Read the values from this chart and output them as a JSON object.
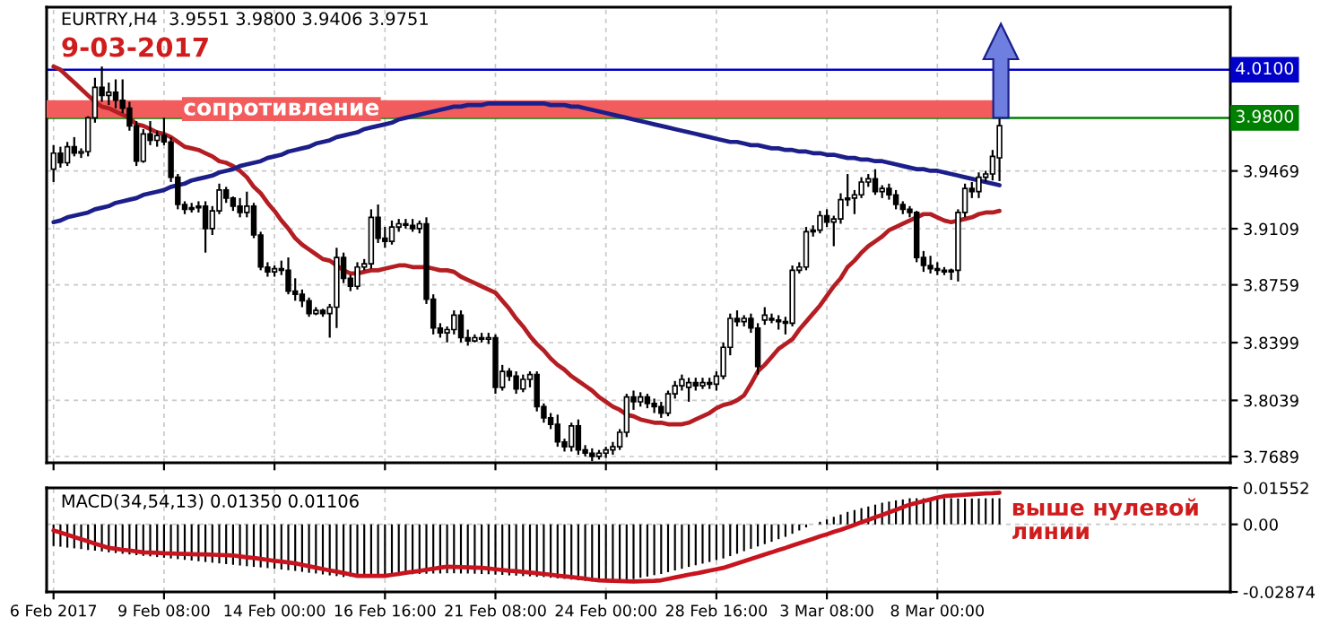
{
  "chart_data": [
    {
      "type": "candlestick",
      "title": "EURTRY,H4  3.9551 3.9800 3.9406 3.9751",
      "subtitle": "9-03-2017",
      "categories": [
        null,
        null,
        null,
        null,
        null,
        null,
        null,
        null,
        null,
        null,
        null,
        null,
        null,
        null,
        null,
        null,
        null,
        null,
        null,
        null,
        null,
        null,
        null,
        null,
        null,
        null,
        null,
        null,
        null,
        null,
        null,
        null,
        null,
        null,
        null,
        null,
        null,
        null,
        null,
        null,
        null,
        null,
        null,
        null,
        null,
        null,
        null,
        null,
        null,
        null,
        null,
        null,
        null,
        null,
        null,
        null,
        null,
        null,
        null,
        null,
        null,
        null,
        null,
        null,
        null,
        null,
        null,
        null,
        null,
        null,
        null,
        null,
        null,
        null,
        null,
        null,
        null,
        null,
        null,
        null,
        null,
        null,
        null,
        null,
        null,
        null,
        null,
        null,
        null,
        null,
        null,
        null,
        null,
        null,
        null,
        null,
        null,
        null,
        null,
        null,
        null,
        null,
        null,
        null,
        null,
        null,
        null,
        null,
        null,
        null,
        null,
        null,
        null,
        null,
        null,
        null,
        null,
        null,
        null,
        null,
        null,
        null,
        null,
        null,
        null,
        null,
        null,
        null,
        null,
        null,
        null,
        null,
        null,
        null,
        null,
        null,
        null,
        null
      ],
      "ohlc": [
        [
          3.948,
          3.963,
          3.94,
          3.958
        ],
        [
          3.958,
          3.962,
          3.949,
          3.952
        ],
        [
          3.952,
          3.965,
          3.95,
          3.962
        ],
        [
          3.962,
          3.968,
          3.956,
          3.958
        ],
        [
          3.958,
          3.961,
          3.955,
          3.959
        ],
        [
          3.959,
          3.981,
          3.956,
          3.98
        ],
        [
          3.98,
          4.005,
          3.977,
          3.999
        ],
        [
          3.999,
          4.012,
          3.99,
          3.994
        ],
        [
          3.994,
          4.002,
          3.988,
          3.996
        ],
        [
          3.996,
          4.004,
          3.986,
          3.991
        ],
        [
          3.991,
          4.004,
          3.983,
          3.986
        ],
        [
          3.986,
          3.99,
          3.972,
          3.975
        ],
        [
          3.975,
          3.978,
          3.95,
          3.953
        ],
        [
          3.953,
          3.973,
          3.952,
          3.97
        ],
        [
          3.97,
          3.978,
          3.963,
          3.966
        ],
        [
          3.966,
          3.972,
          3.962,
          3.969
        ],
        [
          3.969,
          3.98,
          3.963,
          3.965
        ],
        [
          3.965,
          3.968,
          3.94,
          3.943
        ],
        [
          3.943,
          3.945,
          3.923,
          3.926
        ],
        [
          3.926,
          3.928,
          3.92,
          3.923
        ],
        [
          3.923,
          3.927,
          3.921,
          3.924
        ],
        [
          3.924,
          3.928,
          3.921,
          3.925
        ],
        [
          3.925,
          3.928,
          3.896,
          3.911
        ],
        [
          3.911,
          3.925,
          3.907,
          3.922
        ],
        [
          3.922,
          3.939,
          3.92,
          3.935
        ],
        [
          3.935,
          3.937,
          3.927,
          3.93
        ],
        [
          3.93,
          3.931,
          3.922,
          3.925
        ],
        [
          3.925,
          3.93,
          3.918,
          3.921
        ],
        [
          3.921,
          3.934,
          3.918,
          3.925
        ],
        [
          3.925,
          3.927,
          3.905,
          3.907
        ],
        [
          3.907,
          3.909,
          3.885,
          3.887
        ],
        [
          3.887,
          3.89,
          3.881,
          3.884
        ],
        [
          3.884,
          3.888,
          3.881,
          3.886
        ],
        [
          3.886,
          3.891,
          3.882,
          3.885
        ],
        [
          3.885,
          3.893,
          3.87,
          3.872
        ],
        [
          3.872,
          3.88,
          3.866,
          3.87
        ],
        [
          3.87,
          3.873,
          3.862,
          3.866
        ],
        [
          3.866,
          3.868,
          3.856,
          3.858
        ],
        [
          3.858,
          3.862,
          3.857,
          3.86
        ],
        [
          3.86,
          3.861,
          3.856,
          3.858
        ],
        [
          3.858,
          3.864,
          3.843,
          3.862
        ],
        [
          3.862,
          3.899,
          3.849,
          3.893
        ],
        [
          3.893,
          3.896,
          3.877,
          3.88
        ],
        [
          3.88,
          3.882,
          3.872,
          3.875
        ],
        [
          3.875,
          3.89,
          3.873,
          3.887
        ],
        [
          3.887,
          3.892,
          3.885,
          3.889
        ],
        [
          3.889,
          3.923,
          3.886,
          3.918
        ],
        [
          3.918,
          3.926,
          3.902,
          3.905
        ],
        [
          3.905,
          3.912,
          3.899,
          3.903
        ],
        [
          3.903,
          3.916,
          3.901,
          3.912
        ],
        [
          3.912,
          3.917,
          3.909,
          3.914
        ],
        [
          3.914,
          3.917,
          3.911,
          3.913
        ],
        [
          3.913,
          3.917,
          3.909,
          3.911
        ],
        [
          3.911,
          3.916,
          3.908,
          3.914
        ],
        [
          3.914,
          3.918,
          3.864,
          3.867
        ],
        [
          3.867,
          3.87,
          3.845,
          3.849
        ],
        [
          3.849,
          3.852,
          3.843,
          3.846
        ],
        [
          3.846,
          3.85,
          3.84,
          3.848
        ],
        [
          3.848,
          3.86,
          3.845,
          3.857
        ],
        [
          3.857,
          3.86,
          3.84,
          3.843
        ],
        [
          3.843,
          3.848,
          3.838,
          3.841
        ],
        [
          3.841,
          3.845,
          3.84,
          3.843
        ],
        [
          3.843,
          3.846,
          3.84,
          3.842
        ],
        [
          3.842,
          3.846,
          3.839,
          3.843
        ],
        [
          3.843,
          3.845,
          3.808,
          3.812
        ],
        [
          3.812,
          3.826,
          3.81,
          3.822
        ],
        [
          3.822,
          3.824,
          3.816,
          3.819
        ],
        [
          3.819,
          3.822,
          3.808,
          3.811
        ],
        [
          3.811,
          3.82,
          3.809,
          3.817
        ],
        [
          3.817,
          3.822,
          3.812,
          3.82
        ],
        [
          3.82,
          3.822,
          3.797,
          3.8
        ],
        [
          3.8,
          3.802,
          3.79,
          3.793
        ],
        [
          3.793,
          3.796,
          3.786,
          3.789
        ],
        [
          3.789,
          3.795,
          3.775,
          3.778
        ],
        [
          3.778,
          3.78,
          3.772,
          3.775
        ],
        [
          3.775,
          3.79,
          3.772,
          3.788
        ],
        [
          3.788,
          3.792,
          3.77,
          3.773
        ],
        [
          3.773,
          3.776,
          3.769,
          3.771
        ],
        [
          3.771,
          3.774,
          3.766,
          3.769
        ],
        [
          3.769,
          3.773,
          3.767,
          3.771
        ],
        [
          3.771,
          3.775,
          3.768,
          3.773
        ],
        [
          3.773,
          3.778,
          3.77,
          3.775
        ],
        [
          3.775,
          3.786,
          3.773,
          3.784
        ],
        [
          3.784,
          3.808,
          3.781,
          3.806
        ],
        [
          3.806,
          3.81,
          3.798,
          3.803
        ],
        [
          3.803,
          3.809,
          3.8,
          3.806
        ],
        [
          3.806,
          3.808,
          3.799,
          3.802
        ],
        [
          3.802,
          3.805,
          3.796,
          3.8
        ],
        [
          3.8,
          3.803,
          3.793,
          3.796
        ],
        [
          3.796,
          3.81,
          3.794,
          3.808
        ],
        [
          3.808,
          3.816,
          3.805,
          3.813
        ],
        [
          3.813,
          3.82,
          3.81,
          3.817
        ],
        [
          3.812,
          3.818,
          3.803,
          3.815
        ],
        [
          3.815,
          3.818,
          3.81,
          3.813
        ],
        [
          3.813,
          3.818,
          3.811,
          3.815
        ],
        [
          3.815,
          3.818,
          3.811,
          3.814
        ],
        [
          3.814,
          3.822,
          3.81,
          3.819
        ],
        [
          3.819,
          3.84,
          3.817,
          3.837
        ],
        [
          3.837,
          3.858,
          3.832,
          3.855
        ],
        [
          3.855,
          3.86,
          3.85,
          3.853
        ],
        [
          3.853,
          3.857,
          3.85,
          3.855
        ],
        [
          3.855,
          3.858,
          3.846,
          3.849
        ],
        [
          3.849,
          3.852,
          3.82,
          3.825
        ],
        [
          3.854,
          3.862,
          3.851,
          3.857
        ],
        [
          3.855,
          3.858,
          3.852,
          3.854
        ],
        [
          3.854,
          3.857,
          3.848,
          3.853
        ],
        [
          3.853,
          3.856,
          3.845,
          3.852
        ],
        [
          3.852,
          3.888,
          3.85,
          3.885
        ],
        [
          3.885,
          3.89,
          3.883,
          3.887
        ],
        [
          3.887,
          3.912,
          3.885,
          3.909
        ],
        [
          3.909,
          3.913,
          3.906,
          3.91
        ],
        [
          3.91,
          3.922,
          3.908,
          3.919
        ],
        [
          3.919,
          3.923,
          3.912,
          3.915
        ],
        [
          3.915,
          3.919,
          3.9,
          3.917
        ],
        [
          3.917,
          3.933,
          3.914,
          3.929
        ],
        [
          3.929,
          3.945,
          3.925,
          3.93
        ],
        [
          3.93,
          3.935,
          3.92,
          3.932
        ],
        [
          3.932,
          3.943,
          3.93,
          3.94
        ],
        [
          3.94,
          3.945,
          3.937,
          3.942
        ],
        [
          3.942,
          3.948,
          3.932,
          3.934
        ],
        [
          3.934,
          3.938,
          3.93,
          3.936
        ],
        [
          3.936,
          3.939,
          3.929,
          3.932
        ],
        [
          3.932,
          3.935,
          3.923,
          3.926
        ],
        [
          3.926,
          3.928,
          3.92,
          3.923
        ],
        [
          3.923,
          3.925,
          3.918,
          3.921
        ],
        [
          3.921,
          3.922,
          3.89,
          3.893
        ],
        [
          3.893,
          3.897,
          3.884,
          3.888
        ],
        [
          3.888,
          3.894,
          3.883,
          3.886
        ],
        [
          3.886,
          3.89,
          3.882,
          3.885
        ],
        [
          3.885,
          3.887,
          3.882,
          3.884
        ],
        [
          3.884,
          3.886,
          3.879,
          3.885
        ],
        [
          3.885,
          3.923,
          3.878,
          3.921
        ],
        [
          3.921,
          3.939,
          3.918,
          3.936
        ],
        [
          3.936,
          3.94,
          3.93,
          3.934
        ],
        [
          3.934,
          3.946,
          3.93,
          3.943
        ],
        [
          3.943,
          3.947,
          3.94,
          3.945
        ],
        [
          3.945,
          3.96,
          3.941,
          3.956
        ],
        [
          3.9551,
          3.98,
          3.9406,
          3.9751
        ]
      ],
      "series": [
        {
          "type": "line",
          "color": "#b41e23",
          "values": [
            4.012,
            4.01,
            4.006,
            4.002,
            3.998,
            3.994,
            3.99,
            3.987,
            3.986,
            3.984,
            3.982,
            3.98,
            3.976,
            3.975,
            3.973,
            3.971,
            3.97,
            3.968,
            3.965,
            3.962,
            3.961,
            3.96,
            3.958,
            3.956,
            3.953,
            3.952,
            3.95,
            3.947,
            3.943,
            3.937,
            3.933,
            3.927,
            3.922,
            3.916,
            3.911,
            3.905,
            3.901,
            3.898,
            3.895,
            3.892,
            3.891,
            3.888,
            3.885,
            3.883,
            3.883,
            3.884,
            3.885,
            3.885,
            3.886,
            3.887,
            3.888,
            3.888,
            3.887,
            3.887,
            3.887,
            3.886,
            3.885,
            3.885,
            3.884,
            3.881,
            3.879,
            3.877,
            3.875,
            3.873,
            3.871,
            3.866,
            3.861,
            3.855,
            3.85,
            3.844,
            3.839,
            3.835,
            3.83,
            3.826,
            3.823,
            3.819,
            3.816,
            3.813,
            3.81,
            3.806,
            3.803,
            3.8,
            3.798,
            3.795,
            3.794,
            3.792,
            3.791,
            3.79,
            3.79,
            3.789,
            3.789,
            3.789,
            3.79,
            3.792,
            3.794,
            3.796,
            3.799,
            3.801,
            3.802,
            3.804,
            3.807,
            3.814,
            3.822,
            3.826,
            3.831,
            3.836,
            3.839,
            3.842,
            3.848,
            3.853,
            3.858,
            3.863,
            3.869,
            3.875,
            3.88,
            3.887,
            3.891,
            3.896,
            3.9,
            3.903,
            3.906,
            3.91,
            3.912,
            3.914,
            3.916,
            3.918,
            3.92,
            3.92,
            3.918,
            3.916,
            3.915,
            3.916,
            3.917,
            3.918,
            3.92,
            3.921,
            3.921,
            3.922
          ]
        },
        {
          "type": "line",
          "color": "#1c1f8a",
          "values": [
            3.915,
            3.916,
            3.918,
            3.919,
            3.92,
            3.921,
            3.923,
            3.924,
            3.925,
            3.927,
            3.928,
            3.929,
            3.93,
            3.932,
            3.933,
            3.934,
            3.935,
            3.937,
            3.938,
            3.939,
            3.941,
            3.942,
            3.943,
            3.944,
            3.946,
            3.947,
            3.948,
            3.95,
            3.951,
            3.952,
            3.953,
            3.955,
            3.956,
            3.957,
            3.959,
            3.96,
            3.961,
            3.962,
            3.964,
            3.965,
            3.966,
            3.968,
            3.969,
            3.97,
            3.971,
            3.973,
            3.974,
            3.975,
            3.976,
            3.977,
            3.979,
            3.98,
            3.981,
            3.982,
            3.983,
            3.984,
            3.985,
            3.986,
            3.987,
            3.987,
            3.988,
            3.988,
            3.988,
            3.989,
            3.989,
            3.989,
            3.989,
            3.989,
            3.989,
            3.989,
            3.989,
            3.989,
            3.988,
            3.988,
            3.988,
            3.987,
            3.987,
            3.986,
            3.985,
            3.984,
            3.983,
            3.982,
            3.981,
            3.98,
            3.979,
            3.978,
            3.977,
            3.976,
            3.975,
            3.974,
            3.973,
            3.972,
            3.971,
            3.97,
            3.969,
            3.968,
            3.967,
            3.966,
            3.965,
            3.965,
            3.964,
            3.963,
            3.963,
            3.962,
            3.961,
            3.961,
            3.96,
            3.96,
            3.959,
            3.959,
            3.958,
            3.958,
            3.957,
            3.957,
            3.956,
            3.955,
            3.955,
            3.954,
            3.954,
            3.953,
            3.953,
            3.952,
            3.951,
            3.95,
            3.949,
            3.948,
            3.948,
            3.947,
            3.947,
            3.946,
            3.945,
            3.944,
            3.943,
            3.942,
            3.941,
            3.94,
            3.939,
            3.938
          ]
        }
      ],
      "ylim": [
        3.765,
        4.049
      ],
      "yticks": [
        3.7689,
        3.8039,
        3.8399,
        3.8759,
        3.9109,
        3.9469
      ],
      "ref_lines": [
        {
          "axis": "y",
          "value": 4.01,
          "label": "4.0100",
          "color": "#0000c8"
        },
        {
          "axis": "y",
          "value": 3.98,
          "label": "3.9800",
          "color": "#008000"
        }
      ],
      "bands": [
        {
          "axis": "y",
          "from": 3.98,
          "to": 3.991,
          "label": "сопротивление",
          "color": "#f25c5c"
        }
      ],
      "grid": true
    },
    {
      "type": "bar",
      "title": "MACD(34,54,13) 0.01350 0.01106",
      "categories": [
        "6 Feb 2017",
        null,
        null,
        null,
        null,
        null,
        null,
        null,
        null,
        null,
        null,
        null,
        null,
        null,
        null,
        null,
        "9 Feb 08:00",
        null,
        null,
        null,
        null,
        null,
        null,
        null,
        null,
        null,
        null,
        null,
        null,
        null,
        null,
        null,
        "14 Feb 00:00",
        null,
        null,
        null,
        null,
        null,
        null,
        null,
        null,
        null,
        null,
        null,
        null,
        null,
        null,
        null,
        "16 Feb 16:00",
        null,
        null,
        null,
        null,
        null,
        null,
        null,
        null,
        null,
        null,
        null,
        null,
        null,
        null,
        null,
        "21 Feb 08:00",
        null,
        null,
        null,
        null,
        null,
        null,
        null,
        null,
        null,
        null,
        null,
        null,
        null,
        null,
        null,
        "24 Feb 00:00",
        null,
        null,
        null,
        null,
        null,
        null,
        null,
        null,
        null,
        null,
        null,
        null,
        null,
        null,
        null,
        "28 Feb 16:00",
        null,
        null,
        null,
        null,
        null,
        null,
        null,
        null,
        null,
        null,
        null,
        null,
        null,
        null,
        null,
        "3 Mar 08:00",
        null,
        null,
        null,
        null,
        null,
        null,
        null,
        null,
        null,
        null,
        null,
        null,
        null,
        null,
        null,
        "8 Mar 00:00",
        null,
        null,
        null,
        null,
        null,
        null,
        null,
        null,
        null
      ],
      "series": [
        {
          "color": "#000000",
          "values": [
            -0.0092,
            -0.0095,
            -0.0099,
            -0.0102,
            -0.0105,
            -0.0109,
            -0.0112,
            -0.0115,
            -0.0119,
            -0.0122,
            -0.0125,
            -0.0128,
            -0.0131,
            -0.0134,
            -0.0136,
            -0.0139,
            -0.0142,
            -0.0145,
            -0.0148,
            -0.0151,
            -0.0154,
            -0.0157,
            -0.016,
            -0.0163,
            -0.0166,
            -0.0169,
            -0.0172,
            -0.0175,
            -0.0178,
            -0.0181,
            -0.0183,
            -0.0186,
            -0.0189,
            -0.0192,
            -0.0195,
            -0.0198,
            -0.0202,
            -0.0206,
            -0.0209,
            -0.0213,
            -0.0217,
            -0.022,
            -0.0224,
            -0.0223,
            -0.0222,
            -0.0221,
            -0.022,
            -0.0219,
            -0.0218,
            -0.0216,
            -0.0215,
            -0.0214,
            -0.0212,
            -0.0211,
            -0.021,
            -0.0209,
            -0.0209,
            -0.0208,
            -0.0208,
            -0.0209,
            -0.0209,
            -0.021,
            -0.0211,
            -0.0212,
            -0.0214,
            -0.0215,
            -0.0217,
            -0.0218,
            -0.022,
            -0.0221,
            -0.0223,
            -0.0224,
            -0.0227,
            -0.023,
            -0.0232,
            -0.0235,
            -0.0238,
            -0.024,
            -0.0243,
            -0.0242,
            -0.0241,
            -0.024,
            -0.0239,
            -0.0238,
            -0.0233,
            -0.0227,
            -0.0222,
            -0.0216,
            -0.0211,
            -0.0203,
            -0.0196,
            -0.0189,
            -0.0181,
            -0.0174,
            -0.0167,
            -0.016,
            -0.0152,
            -0.0145,
            -0.0135,
            -0.0125,
            -0.0114,
            -0.0104,
            -0.0094,
            -0.0084,
            -0.0074,
            -0.0063,
            -0.0053,
            -0.004,
            -0.0026,
            -0.0013,
            0.0,
            0.0011,
            0.0021,
            0.0032,
            0.0042,
            0.0053,
            0.0061,
            0.0069,
            0.0076,
            0.0084,
            0.0092,
            0.0097,
            0.0102,
            0.0106,
            0.0111,
            0.0111,
            0.0111,
            0.0111,
            0.0111,
            0.0111,
            0.0111,
            0.011,
            0.011,
            0.011,
            0.011,
            0.0111,
            0.0111,
            0.0111
          ]
        },
        {
          "type": "line",
          "color": "#c8141e",
          "values": [
            -0.0026,
            -0.0035,
            -0.0044,
            -0.0054,
            -0.0063,
            -0.0072,
            -0.0082,
            -0.0091,
            -0.01,
            -0.0104,
            -0.0108,
            -0.0111,
            -0.0115,
            -0.0119,
            -0.012,
            -0.0121,
            -0.0123,
            -0.0124,
            -0.0125,
            -0.0126,
            -0.0127,
            -0.0128,
            -0.0128,
            -0.0129,
            -0.013,
            -0.0131,
            -0.0132,
            -0.0136,
            -0.014,
            -0.0143,
            -0.0147,
            -0.0151,
            -0.0155,
            -0.0158,
            -0.0162,
            -0.0166,
            -0.0172,
            -0.0178,
            -0.0184,
            -0.019,
            -0.0196,
            -0.0201,
            -0.0207,
            -0.0213,
            -0.0219,
            -0.0219,
            -0.0219,
            -0.0219,
            -0.0219,
            -0.0215,
            -0.0211,
            -0.0206,
            -0.0202,
            -0.0198,
            -0.0193,
            -0.0189,
            -0.0184,
            -0.018,
            -0.0181,
            -0.0182,
            -0.0183,
            -0.0184,
            -0.0185,
            -0.0188,
            -0.0191,
            -0.0194,
            -0.0197,
            -0.0199,
            -0.0202,
            -0.0205,
            -0.0208,
            -0.0211,
            -0.0214,
            -0.0218,
            -0.0221,
            -0.0224,
            -0.0228,
            -0.0231,
            -0.0235,
            -0.0238,
            -0.0239,
            -0.024,
            -0.0241,
            -0.0242,
            -0.0243,
            -0.0242,
            -0.0241,
            -0.024,
            -0.0238,
            -0.0232,
            -0.0226,
            -0.022,
            -0.0214,
            -0.0209,
            -0.0203,
            -0.0197,
            -0.0191,
            -0.0185,
            -0.0176,
            -0.0166,
            -0.0157,
            -0.0147,
            -0.0138,
            -0.0128,
            -0.0119,
            -0.0109,
            -0.01,
            -0.009,
            -0.008,
            -0.0071,
            -0.0061,
            -0.0051,
            -0.0042,
            -0.0032,
            -0.0023,
            -0.0013,
            -0.0002,
            0.0009,
            0.0019,
            0.003,
            0.004,
            0.0051,
            0.0062,
            0.0073,
            0.0084,
            0.0091,
            0.0099,
            0.0106,
            0.0114,
            0.012,
            0.0122,
            0.0124,
            0.0126,
            0.0128,
            0.013,
            0.0132,
            0.0133,
            0.0135
          ]
        }
      ],
      "ylim": [
        -0.02874,
        0.01552
      ],
      "yticks": [
        0.01552,
        {
          "value": 0,
          "label": "0.00"
        },
        -0.02874
      ],
      "annotations": [
        "выше нулевой\nлинии"
      ],
      "grid": true
    }
  ]
}
